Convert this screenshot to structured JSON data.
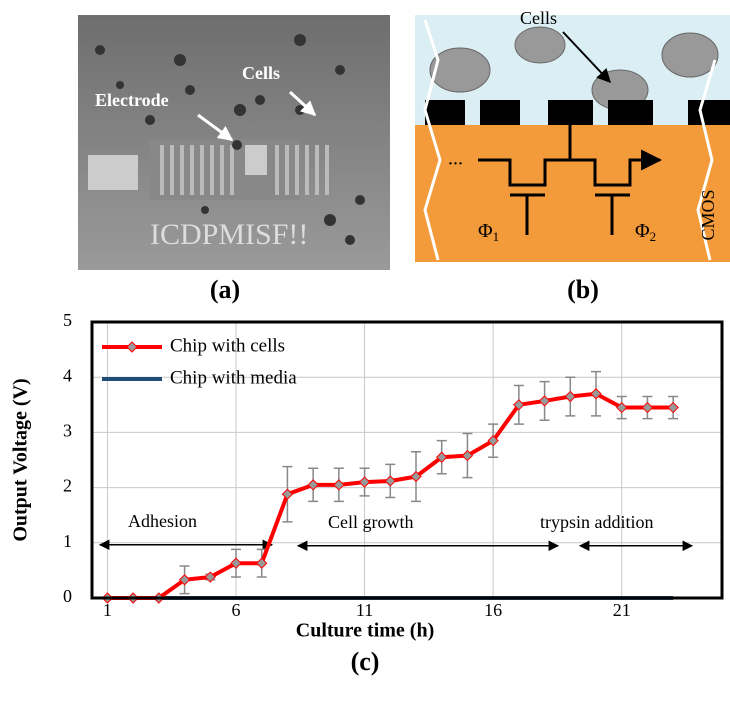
{
  "panels": {
    "a": {
      "label": "(a)",
      "electrode": "Electrode",
      "cells": "Cells",
      "chip_text": "ICDPMISF!!"
    },
    "b": {
      "label": "(b)",
      "cells": "Cells",
      "cmos": "CMOS",
      "dots": "...",
      "phi1": {
        "symbol": "Φ",
        "subscript": "1"
      },
      "phi2": {
        "symbol": "Φ",
        "subscript": "2"
      }
    },
    "c": {
      "label": "(c)"
    }
  },
  "chart_data": {
    "type": "line",
    "x_label": "Culture time (h)",
    "y_label": "Output Voltage (V)",
    "x": [
      1,
      2,
      3,
      4,
      5,
      6,
      7,
      8,
      9,
      10,
      11,
      12,
      13,
      14,
      15,
      16,
      17,
      18,
      19,
      20,
      21,
      22,
      23
    ],
    "series": [
      {
        "name": "Chip with cells",
        "color": "#ff0000",
        "marker_color": "#999999",
        "values": [
          0,
          0,
          0,
          0.33,
          0.38,
          0.63,
          0.63,
          1.88,
          2.05,
          2.05,
          2.1,
          2.12,
          2.2,
          2.55,
          2.58,
          2.85,
          3.5,
          3.57,
          3.65,
          3.7,
          3.45,
          3.45,
          3.45
        ],
        "errors": [
          0,
          0,
          0,
          0.25,
          0.05,
          0.25,
          0.25,
          0.5,
          0.3,
          0.3,
          0.25,
          0.3,
          0.45,
          0.3,
          0.4,
          0.3,
          0.35,
          0.35,
          0.35,
          0.4,
          0.2,
          0.2,
          0.2
        ]
      },
      {
        "name": "Chip with media",
        "color": "#1f4e79",
        "values": [
          0,
          0,
          0,
          0,
          0,
          0,
          0,
          0,
          0,
          0,
          0,
          0,
          0,
          0,
          0,
          0,
          0,
          0,
          0,
          0,
          0,
          0,
          0
        ]
      }
    ],
    "xlim": [
      0.4,
      24.9
    ],
    "ylim": [
      0,
      5
    ],
    "xticks": [
      1,
      6,
      11,
      16,
      21
    ],
    "yticks": [
      0,
      1,
      2,
      3,
      4,
      5
    ],
    "grid": true,
    "legend": "upper left",
    "annotations": [
      "Adhesion",
      "Cell growth",
      "trypsin addition"
    ]
  }
}
